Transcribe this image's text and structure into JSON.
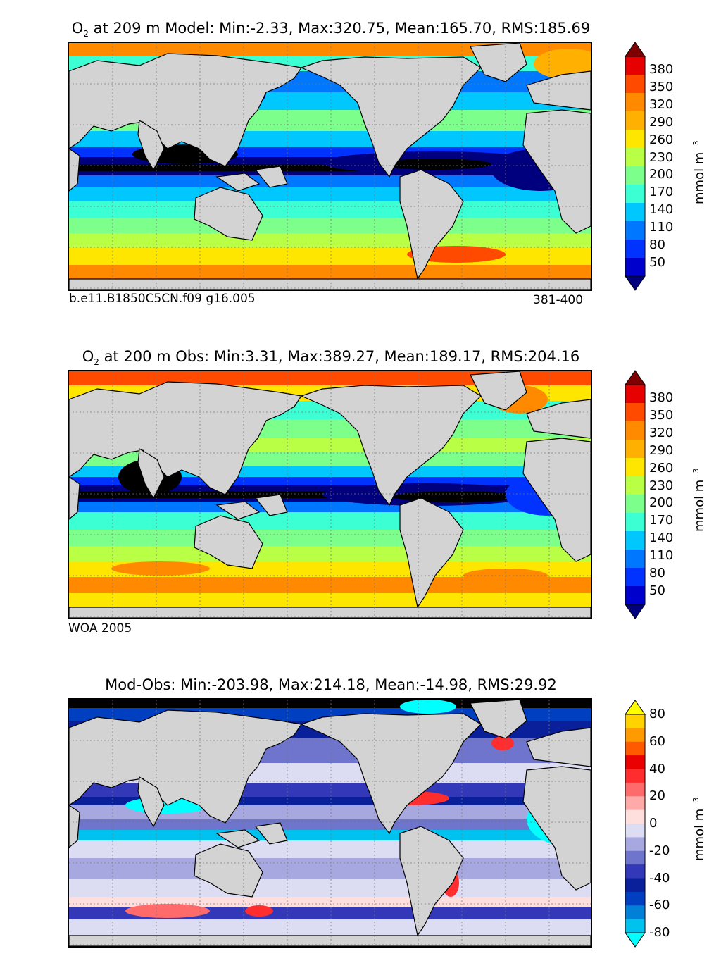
{
  "panels": [
    {
      "id": "model",
      "title_species": "O",
      "title_sub": "2",
      "title_rest": " at 209 m Model: Min:-2.33, Max:320.75, Mean:165.70, RMS:185.69",
      "caption_left": "b.e11.B1850C5CN.f09 g16.005",
      "caption_right": "381-400"
    },
    {
      "id": "obs",
      "title_species": "O",
      "title_sub": "2",
      "title_rest": " at 200 m Obs: Min:3.31, Max:389.27, Mean:189.17, RMS:204.16",
      "caption_left": "WOA 2005",
      "caption_right": ""
    },
    {
      "id": "diff",
      "title_species": "",
      "title_sub": "",
      "title_rest": "Mod-Obs: Min:-203.98, Max:214.18, Mean:-14.98, RMS:29.92",
      "caption_left": "",
      "caption_right": ""
    }
  ],
  "colorbar_o2": {
    "ticks": [
      "380",
      "350",
      "320",
      "290",
      "260",
      "230",
      "200",
      "170",
      "140",
      "110",
      "80",
      "50"
    ],
    "unit_main": "mmol m",
    "unit_sup": "−3",
    "colors": [
      "#00007f",
      "#0000cd",
      "#0033ff",
      "#0077ff",
      "#00c8ff",
      "#3cffd4",
      "#7dff8c",
      "#b8ff46",
      "#ffe600",
      "#ffb000",
      "#ff8a00",
      "#ff4a00",
      "#e60000",
      "#7f0000"
    ]
  },
  "colorbar_diff": {
    "ticks": [
      "80",
      "60",
      "40",
      "20",
      "0",
      "-20",
      "-40",
      "-60",
      "-80"
    ],
    "unit_main": "mmol m",
    "unit_sup": "−3",
    "colors": [
      "#00ffff",
      "#00c2ee",
      "#0080d6",
      "#0040c0",
      "#0a1f9a",
      "#3338b8",
      "#6f74cc",
      "#a8a8e0",
      "#dcdcf3",
      "#ffdede",
      "#ffa9a9",
      "#ff6a6a",
      "#ff2d2d",
      "#ea0000",
      "#ff5a00",
      "#ff9a00",
      "#ffd200",
      "#ffff00"
    ]
  },
  "palette": {
    "land": "#d3d3d3",
    "missing": "#ffffff",
    "coast": "#000000",
    "grid": "#777777"
  }
}
